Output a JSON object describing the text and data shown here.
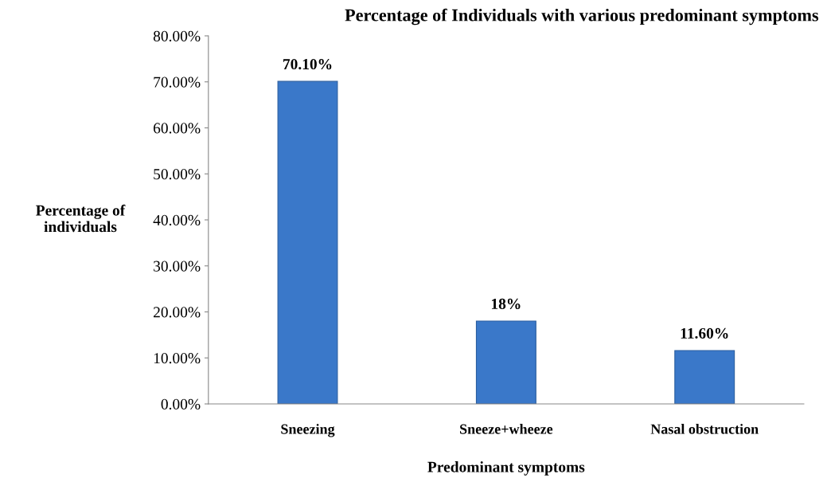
{
  "chart_data": {
    "type": "bar",
    "title": "Percentage of Individuals with various predominant symptoms",
    "xlabel": "Predominant symptoms",
    "ylabel": "Percentage of\nindividuals",
    "categories": [
      "Sneezing",
      "Sneeze+wheeze",
      "Nasal obstruction"
    ],
    "values": [
      70.1,
      18,
      11.6
    ],
    "color": "#3a78c9",
    "value_labels": [
      "70.10%",
      "18%",
      "11.60%"
    ],
    "ylim": [
      0,
      80
    ],
    "yticks": [
      {
        "value": 0,
        "label": "0.00%"
      },
      {
        "value": 10,
        "label": "10.00%"
      },
      {
        "value": 20,
        "label": "20.00%"
      },
      {
        "value": 30,
        "label": "30.00%"
      },
      {
        "value": 40,
        "label": "40.00%"
      },
      {
        "value": 50,
        "label": "50.00%"
      },
      {
        "value": 60,
        "label": "60.00%"
      },
      {
        "value": 70,
        "label": "70.00%"
      },
      {
        "value": 80,
        "label": "80.00%"
      }
    ],
    "grid": false,
    "legend": false
  }
}
